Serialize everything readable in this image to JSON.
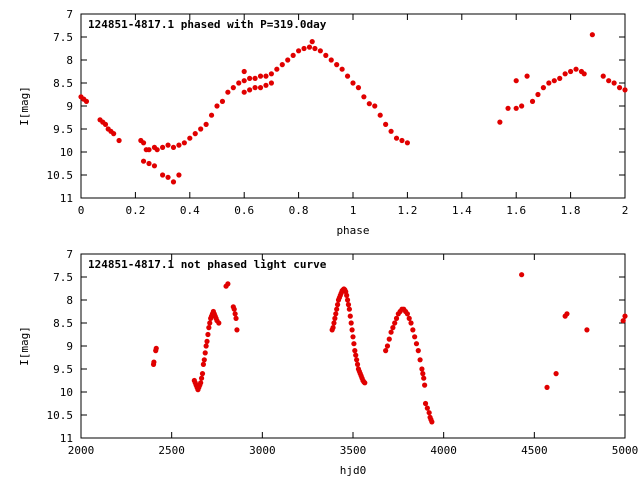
{
  "chart_data": [
    {
      "type": "scatter",
      "title": "124851-4817.1 phased with P=319.0day",
      "xlabel": "phase",
      "ylabel": "I[mag]",
      "xlim": [
        0,
        2
      ],
      "ylim": [
        7,
        11
      ],
      "y_inverted": true,
      "grid": false,
      "x_ticks": [
        0,
        0.2,
        0.4,
        0.6,
        0.8,
        1,
        1.2,
        1.4,
        1.6,
        1.8,
        2
      ],
      "x_tick_labels": [
        "0",
        "0.2",
        "0.4",
        "0.6",
        "0.8",
        "1",
        "1.2",
        "1.4",
        "1.6",
        "1.8",
        "2"
      ],
      "y_ticks": [
        7,
        7.5,
        8,
        8.5,
        9,
        9.5,
        10,
        10.5,
        11
      ],
      "y_tick_labels": [
        "7",
        "7.5",
        "8",
        "8.5",
        "9",
        "9.5",
        "10",
        "10.5",
        "11"
      ],
      "marker_color": "#e00000",
      "series": [
        {
          "x": [
            0.0,
            0.01,
            0.02,
            0.07,
            0.08,
            0.09,
            0.1,
            0.11,
            0.12,
            0.14,
            0.22,
            0.23,
            0.24,
            0.25,
            0.27,
            0.28,
            0.3,
            0.32,
            0.34,
            0.36,
            0.23,
            0.25,
            0.27,
            0.3,
            0.32,
            0.34,
            0.36,
            0.38,
            0.4,
            0.42,
            0.44,
            0.46,
            0.48,
            0.5,
            0.52,
            0.54,
            0.56,
            0.58,
            0.6,
            0.62,
            0.64,
            0.66,
            0.68,
            0.7,
            0.72,
            0.74,
            0.76,
            0.6,
            0.62,
            0.64,
            0.66,
            0.68,
            0.7,
            0.78,
            0.8,
            0.82,
            0.84,
            0.86,
            0.88,
            0.9,
            0.92,
            0.94,
            0.96,
            0.98,
            1.0,
            1.02,
            1.04,
            1.06,
            1.08,
            1.1,
            1.12,
            1.14,
            1.16,
            1.18,
            1.2,
            0.85,
            0.6,
            1.54,
            1.57,
            1.6,
            1.62,
            1.6,
            1.64,
            1.66,
            1.68,
            1.7,
            1.72,
            1.74,
            1.76,
            1.78,
            1.8,
            1.82,
            1.84,
            1.85,
            1.88,
            1.92,
            1.94,
            1.96,
            1.98,
            2.0
          ],
          "y": [
            8.8,
            8.85,
            8.9,
            9.3,
            9.35,
            9.4,
            9.5,
            9.55,
            9.6,
            9.75,
            9.75,
            9.8,
            9.95,
            9.95,
            9.9,
            9.95,
            9.9,
            9.85,
            9.9,
            9.85,
            10.2,
            10.25,
            10.3,
            10.5,
            10.55,
            10.65,
            10.5,
            9.8,
            9.7,
            9.6,
            9.5,
            9.4,
            9.2,
            9.0,
            8.9,
            8.7,
            8.6,
            8.5,
            8.45,
            8.4,
            8.4,
            8.35,
            8.35,
            8.3,
            8.2,
            8.1,
            8.0,
            8.7,
            8.65,
            8.6,
            8.6,
            8.55,
            8.5,
            7.9,
            7.8,
            7.75,
            7.72,
            7.75,
            7.8,
            7.9,
            8.0,
            8.1,
            8.2,
            8.35,
            8.5,
            8.6,
            8.8,
            8.95,
            9.0,
            9.2,
            9.4,
            9.55,
            9.7,
            9.75,
            9.8,
            7.6,
            8.25,
            9.35,
            9.05,
            9.05,
            9.0,
            8.45,
            8.35,
            8.9,
            8.75,
            8.6,
            8.5,
            8.45,
            8.4,
            8.3,
            8.25,
            8.2,
            8.25,
            8.3,
            7.45,
            8.35,
            8.45,
            8.5,
            8.6,
            8.65
          ]
        }
      ]
    },
    {
      "type": "scatter",
      "title": "124851-4817.1 not phased light curve",
      "xlabel": "hjd0",
      "ylabel": "I[mag]",
      "xlim": [
        2000,
        5000
      ],
      "ylim": [
        7,
        11
      ],
      "y_inverted": true,
      "grid": false,
      "x_ticks": [
        2000,
        2500,
        3000,
        3500,
        4000,
        4500,
        5000
      ],
      "x_tick_labels": [
        "2000",
        "2500",
        "3000",
        "3500",
        "4000",
        "4500",
        "5000"
      ],
      "y_ticks": [
        7,
        7.5,
        8,
        8.5,
        9,
        9.5,
        10,
        10.5,
        11
      ],
      "y_tick_labels": [
        "7",
        "7.5",
        "8",
        "8.5",
        "9",
        "9.5",
        "10",
        "10.5",
        "11"
      ],
      "marker_color": "#e00000",
      "series": [
        {
          "x": [
            2400,
            2402,
            2412,
            2415,
            2625,
            2630,
            2635,
            2640,
            2645,
            2650,
            2655,
            2660,
            2665,
            2670,
            2675,
            2680,
            2685,
            2690,
            2695,
            2700,
            2705,
            2710,
            2715,
            2720,
            2725,
            2730,
            2735,
            2740,
            2745,
            2750,
            2760,
            2800,
            2810,
            2840,
            2845,
            2850,
            2855,
            2860,
            3385,
            3390,
            3395,
            3400,
            3405,
            3410,
            3415,
            3420,
            3425,
            3430,
            3435,
            3440,
            3445,
            3450,
            3455,
            3460,
            3465,
            3470,
            3475,
            3480,
            3485,
            3490,
            3495,
            3500,
            3505,
            3510,
            3515,
            3520,
            3525,
            3530,
            3535,
            3540,
            3545,
            3550,
            3555,
            3560,
            3565,
            3680,
            3690,
            3700,
            3710,
            3720,
            3730,
            3740,
            3750,
            3760,
            3770,
            3780,
            3790,
            3800,
            3810,
            3820,
            3830,
            3840,
            3850,
            3860,
            3870,
            3880,
            3885,
            3890,
            3895,
            3900,
            3910,
            3920,
            3925,
            3930,
            3935,
            4430,
            4570,
            4620,
            4670,
            4680,
            4790,
            4990,
            5000
          ],
          "y": [
            9.4,
            9.35,
            9.1,
            9.05,
            9.75,
            9.8,
            9.85,
            9.9,
            9.95,
            9.9,
            9.85,
            9.8,
            9.7,
            9.6,
            9.4,
            9.3,
            9.15,
            9.0,
            8.9,
            8.75,
            8.6,
            8.5,
            8.4,
            8.35,
            8.3,
            8.25,
            8.3,
            8.35,
            8.4,
            8.45,
            8.5,
            7.7,
            7.65,
            8.15,
            8.2,
            8.3,
            8.4,
            8.65,
            8.65,
            8.6,
            8.5,
            8.4,
            8.3,
            8.2,
            8.1,
            8.0,
            7.95,
            7.9,
            7.85,
            7.8,
            7.78,
            7.76,
            7.78,
            7.82,
            7.9,
            8.0,
            8.1,
            8.2,
            8.35,
            8.5,
            8.65,
            8.8,
            8.95,
            9.1,
            9.2,
            9.3,
            9.4,
            9.5,
            9.55,
            9.6,
            9.65,
            9.7,
            9.75,
            9.78,
            9.8,
            9.1,
            9.0,
            8.85,
            8.7,
            8.6,
            8.5,
            8.4,
            8.3,
            8.25,
            8.2,
            8.2,
            8.25,
            8.3,
            8.4,
            8.5,
            8.65,
            8.8,
            8.95,
            9.1,
            9.3,
            9.5,
            9.6,
            9.7,
            9.85,
            10.25,
            10.35,
            10.45,
            10.55,
            10.6,
            10.65,
            7.45,
            9.9,
            9.6,
            8.35,
            8.3,
            8.65,
            8.45,
            8.35
          ]
        }
      ]
    }
  ]
}
